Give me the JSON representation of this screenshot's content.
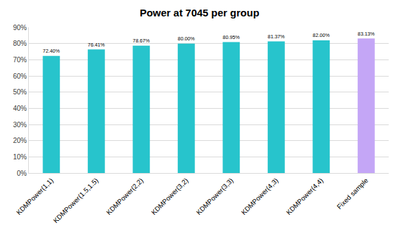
{
  "chart_data": {
    "type": "bar",
    "title": "Power at 7045 per group",
    "categories": [
      "KDMPower(1,1)",
      "KDMPower(1.5,1.5)",
      "KDMPower(2,2)",
      "KDMPower(3,2)",
      "KDMPower(3,3)",
      "KDMPower(4,3)",
      "KDMPower(4,4)",
      "Fixed sample"
    ],
    "values": [
      72.4,
      76.41,
      78.67,
      80.0,
      80.95,
      81.37,
      82.0,
      83.13
    ],
    "value_labels": [
      "72.40%",
      "76.41%",
      "78.67%",
      "80.00%",
      "80.95%",
      "81.37%",
      "82.00%",
      "83.13%"
    ],
    "colors": [
      "#27c4cc",
      "#27c4cc",
      "#27c4cc",
      "#27c4cc",
      "#27c4cc",
      "#27c4cc",
      "#27c4cc",
      "#c4a6f6"
    ],
    "ylim": [
      0,
      90
    ],
    "yticks": [
      {
        "value": 0,
        "label": "0%"
      },
      {
        "value": 10,
        "label": "10%"
      },
      {
        "value": 20,
        "label": "20%"
      },
      {
        "value": 30,
        "label": "30%"
      },
      {
        "value": 40,
        "label": "40%"
      },
      {
        "value": 50,
        "label": "50%"
      },
      {
        "value": 60,
        "label": "60%"
      },
      {
        "value": 70,
        "label": "70%"
      },
      {
        "value": 80,
        "label": "80%"
      },
      {
        "value": 90,
        "label": "90%"
      }
    ],
    "grid": true,
    "data_labels": true
  }
}
